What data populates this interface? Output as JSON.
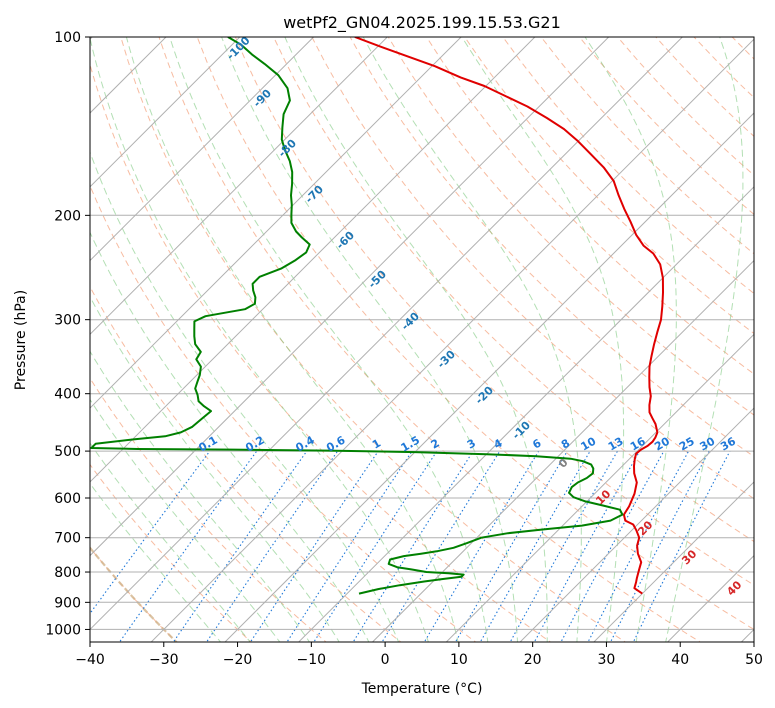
{
  "chart_data": {
    "type": "line",
    "title": "wetPf2_GN04.2025.199.15.53.G21",
    "xlabel": "Temperature (°C)",
    "ylabel": "Pressure (hPa)",
    "xlim": [
      -40,
      50
    ],
    "ylim": [
      1050,
      100
    ],
    "y_scale": "log",
    "grid": true,
    "x_ticks": [
      -40,
      -30,
      -20,
      -10,
      0,
      10,
      20,
      30,
      40,
      50
    ],
    "x_tick_labels": [
      "−40",
      "−30",
      "−20",
      "−10",
      "0",
      "10",
      "20",
      "30",
      "40",
      "50"
    ],
    "y_ticks": [
      1000,
      900,
      800,
      700,
      600,
      500,
      400,
      300,
      200,
      100
    ],
    "y_tick_labels": [
      "1000",
      "900",
      "800",
      "700",
      "600",
      "500",
      "400",
      "300",
      "200",
      "100"
    ],
    "skew_deg": 45,
    "colors": {
      "temperature": "#e00000",
      "dewpoint": "#008000",
      "isotherm_grid": "#b0b0b0",
      "dry_adiabat": "#f4a582",
      "moist_adiabat": "#74c476",
      "mixing_ratio": "#1f78d8",
      "isotherm_label_blue": "#1f77b4",
      "isotherm_label_red": "#d62728",
      "isotherm_label_zero": "#808080",
      "thick_adiabat": "#d2b48c"
    },
    "series": [
      {
        "name": "",
        "color_key": "temperature",
        "points": [
          [
            30.0,
            870
          ],
          [
            29.2,
            862
          ],
          [
            28.2,
            852
          ],
          [
            27.6,
            832
          ],
          [
            27.2,
            820
          ],
          [
            26.4,
            795
          ],
          [
            25.6,
            770
          ],
          [
            24.0,
            745
          ],
          [
            22.8,
            722
          ],
          [
            22.0,
            700
          ],
          [
            20.6,
            680
          ],
          [
            19.4,
            665
          ],
          [
            17.8,
            655
          ],
          [
            16.8,
            640
          ],
          [
            16.4,
            620
          ],
          [
            15.4,
            590
          ],
          [
            14.2,
            565
          ],
          [
            12.6,
            545
          ],
          [
            11.6,
            530
          ],
          [
            10.7,
            515
          ],
          [
            10.2,
            505
          ],
          [
            10.3,
            497
          ],
          [
            10.7,
            490
          ],
          [
            10.8,
            482
          ],
          [
            10.6,
            474
          ],
          [
            10.2,
            465
          ],
          [
            8.8,
            450
          ],
          [
            7.6,
            440
          ],
          [
            6.4,
            430
          ],
          [
            5.4,
            418
          ],
          [
            4.4,
            404
          ],
          [
            3.0,
            390
          ],
          [
            1.6,
            375
          ],
          [
            0.2,
            360
          ],
          [
            -1.0,
            345
          ],
          [
            -2.2,
            330
          ],
          [
            -3.4,
            315
          ],
          [
            -4.6,
            300
          ],
          [
            -6.2,
            285
          ],
          [
            -8.0,
            270
          ],
          [
            -10.0,
            255
          ],
          [
            -12.2,
            242
          ],
          [
            -14.6,
            232
          ],
          [
            -17.0,
            225
          ],
          [
            -19.4,
            216
          ],
          [
            -22.0,
            205
          ],
          [
            -24.6,
            195
          ],
          [
            -27.2,
            185
          ],
          [
            -29.8,
            175
          ],
          [
            -33.0,
            166
          ],
          [
            -36.4,
            158
          ],
          [
            -40.0,
            150
          ],
          [
            -43.6,
            143
          ],
          [
            -47.4,
            137
          ],
          [
            -51.6,
            131
          ],
          [
            -55.8,
            126
          ],
          [
            -60.2,
            121
          ],
          [
            -64.6,
            117
          ],
          [
            -69.6,
            112
          ],
          [
            -74.4,
            108
          ],
          [
            -79.4,
            104
          ],
          [
            -84.4,
            100
          ]
        ]
      },
      {
        "name": "",
        "color_key": "dewpoint",
        "points": [
          [
            -8.4,
            870
          ],
          [
            -6.4,
            855
          ],
          [
            -4.0,
            842
          ],
          [
            -1.2,
            830
          ],
          [
            1.0,
            822
          ],
          [
            3.2,
            815
          ],
          [
            3.2,
            808
          ],
          [
            1.0,
            804
          ],
          [
            -2.2,
            800
          ],
          [
            -4.6,
            792
          ],
          [
            -6.8,
            785
          ],
          [
            -8.4,
            775
          ],
          [
            -8.8,
            762
          ],
          [
            -7.4,
            752
          ],
          [
            -5.4,
            745
          ],
          [
            -3.6,
            738
          ],
          [
            -1.8,
            728
          ],
          [
            -0.6,
            715
          ],
          [
            0.6,
            700
          ],
          [
            3.6,
            688
          ],
          [
            7.8,
            678
          ],
          [
            12.6,
            668
          ],
          [
            15.8,
            655
          ],
          [
            16.6,
            640
          ],
          [
            15.6,
            628
          ],
          [
            12.8,
            618
          ],
          [
            9.8,
            608
          ],
          [
            7.6,
            598
          ],
          [
            6.4,
            588
          ],
          [
            6.0,
            575
          ],
          [
            6.2,
            565
          ],
          [
            6.8,
            555
          ],
          [
            7.0,
            545
          ],
          [
            6.4,
            535
          ],
          [
            5.6,
            527
          ],
          [
            4.0,
            520
          ],
          [
            2.0,
            515
          ],
          [
            -3.0,
            510
          ],
          [
            -10.0,
            506
          ],
          [
            -20.0,
            502
          ],
          [
            -32.0,
            499
          ],
          [
            -45.0,
            497
          ],
          [
            -58.0,
            496
          ],
          [
            -64.4,
            494
          ],
          [
            -64.4,
            486
          ],
          [
            -60.0,
            478
          ],
          [
            -56.0,
            472
          ],
          [
            -54.4,
            465
          ],
          [
            -53.6,
            455
          ],
          [
            -53.4,
            440
          ],
          [
            -53.2,
            428
          ],
          [
            -54.8,
            420
          ],
          [
            -56.2,
            412
          ],
          [
            -57.2,
            402
          ],
          [
            -58.4,
            392
          ],
          [
            -59.0,
            382
          ],
          [
            -59.6,
            372
          ],
          [
            -60.6,
            360
          ],
          [
            -62.2,
            350
          ],
          [
            -62.6,
            340
          ],
          [
            -64.4,
            330
          ],
          [
            -65.6,
            320
          ],
          [
            -66.6,
            311
          ],
          [
            -67.6,
            302
          ],
          [
            -66.8,
            296
          ],
          [
            -64.6,
            292
          ],
          [
            -62.4,
            288
          ],
          [
            -61.8,
            282
          ],
          [
            -62.6,
            275
          ],
          [
            -63.8,
            268
          ],
          [
            -64.8,
            261
          ],
          [
            -64.8,
            254
          ],
          [
            -63.0,
            246
          ],
          [
            -62.2,
            238
          ],
          [
            -61.8,
            231
          ],
          [
            -62.4,
            224
          ],
          [
            -64.4,
            218
          ],
          [
            -66.0,
            213
          ],
          [
            -67.8,
            206
          ],
          [
            -69.0,
            199
          ],
          [
            -70.2,
            192
          ],
          [
            -71.6,
            185
          ],
          [
            -73.0,
            177
          ],
          [
            -74.6,
            169
          ],
          [
            -76.4,
            162
          ],
          [
            -78.6,
            155
          ],
          [
            -80.4,
            149
          ],
          [
            -82.0,
            142
          ],
          [
            -83.6,
            135
          ],
          [
            -84.6,
            128
          ],
          [
            -86.6,
            122
          ],
          [
            -89.6,
            116
          ],
          [
            -93.0,
            111
          ],
          [
            -96.0,
            107
          ],
          [
            -98.8,
            103
          ],
          [
            -101.6,
            100
          ]
        ]
      }
    ],
    "isotherm_labels_blue": [
      "-100",
      "-90",
      "-80",
      "-70",
      "-60",
      "-50",
      "-40",
      "-30",
      "-20",
      "-10"
    ],
    "isotherm_label_zero": "0",
    "isotherm_labels_red": [
      "10",
      "20",
      "30",
      "40"
    ],
    "mixing_ratio_labels": [
      "0.1",
      "0.2",
      "0.4",
      "0.6",
      "1",
      "1.5",
      "2",
      "3",
      "4",
      "6",
      "8",
      "10",
      "13",
      "16",
      "20",
      "25",
      "30",
      "36"
    ],
    "mixing_ratio_values": [
      0.1,
      0.2,
      0.4,
      0.6,
      1,
      1.5,
      2,
      3,
      4,
      6,
      8,
      10,
      13,
      16,
      20,
      25,
      30,
      36
    ]
  }
}
